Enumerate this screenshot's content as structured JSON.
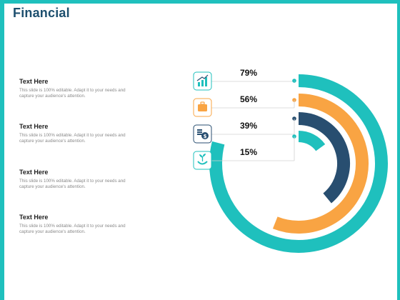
{
  "title": "Financial",
  "items": [
    {
      "heading": "Text Here",
      "body": "This slide is 100% editable.  Adapt it to your needs and capture your audience's attention."
    },
    {
      "heading": "Text Here",
      "body": "This slide is 100% editable.  Adapt it to your needs and capture your audience's attention."
    },
    {
      "heading": "Text Here",
      "body": "This slide is 100% editable.  Adapt it to your needs and capture your audience's attention."
    },
    {
      "heading": "Text Here",
      "body": "This slide is 100% editable.  Adapt it to your needs and capture your audience's attention."
    }
  ],
  "colors": {
    "teal": "#1fc0bd",
    "orange": "#f9a443",
    "navy": "#284e70",
    "title": "#1d4f6e"
  },
  "chart_data": {
    "type": "radial-bar",
    "categories": [
      "growth-chart",
      "briefcase",
      "money",
      "hand-plant"
    ],
    "values": [
      79,
      56,
      39,
      15
    ],
    "labels": [
      "79%",
      "56%",
      "39%",
      "15%"
    ],
    "series_colors": [
      "#1fc0bd",
      "#f9a443",
      "#284e70",
      "#1fc0bd"
    ],
    "icons": [
      "bar-chart-icon",
      "briefcase-icon",
      "money-bag-icon",
      "hand-plant-icon"
    ]
  }
}
